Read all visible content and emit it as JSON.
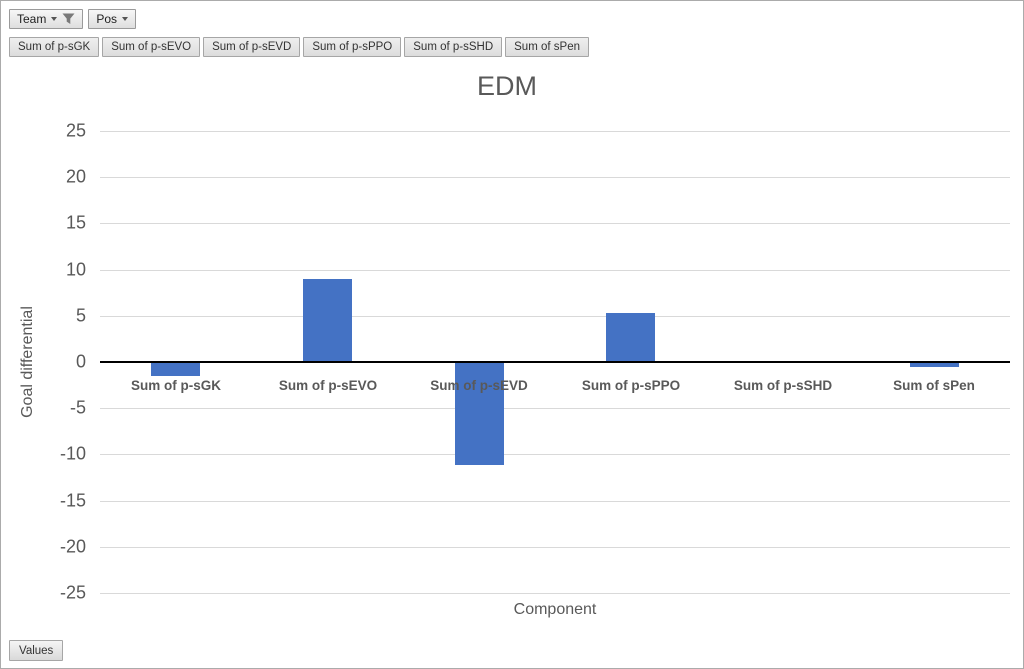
{
  "filters": {
    "team": {
      "label": "Team"
    },
    "pos": {
      "label": "Pos"
    }
  },
  "field_buttons": [
    "Sum of p-sGK",
    "Sum of p-sEVO",
    "Sum of p-sEVD",
    "Sum of p-sPPO",
    "Sum of p-sSHD",
    "Sum of sPen"
  ],
  "values_button_label": "Values",
  "chart_data": {
    "type": "bar",
    "title": "EDM",
    "xlabel": "Component",
    "ylabel": "Goal differential",
    "categories": [
      "Sum of p-sGK",
      "Sum of p-sEVO",
      "Sum of p-sEVD",
      "Sum of p-sPPO",
      "Sum of p-sSHD",
      "Sum of sPen"
    ],
    "values": [
      -1.5,
      9.0,
      -11.1,
      5.3,
      0,
      -0.5
    ],
    "ylim": [
      -25,
      25
    ],
    "ytick_step": 5,
    "grid": true,
    "legend": "none",
    "bar_color": "#4472C4",
    "gridline_color": "#D9D9D9",
    "axis_line_color": "#000000",
    "text_color": "#595959"
  }
}
